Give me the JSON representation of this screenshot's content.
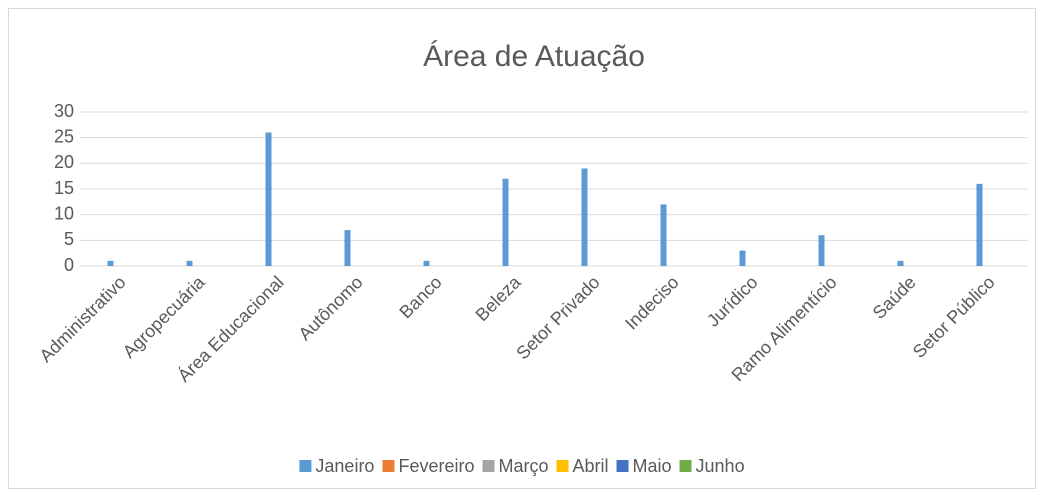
{
  "chart_data": {
    "type": "bar",
    "title": "Área de Atuação",
    "categories": [
      "Administrativo",
      "Agropecuária",
      "Área Educacional",
      "Autônomo",
      "Banco",
      "Beleza",
      "Setor Privado",
      "Indeciso",
      "Jurídico",
      "Ramo Alimentício",
      "Saúde",
      "Setor Público"
    ],
    "series": [
      {
        "name": "Janeiro",
        "color": "#5b9bd5",
        "values": [
          1,
          1,
          26,
          7,
          1,
          17,
          19,
          12,
          3,
          6,
          1,
          16
        ]
      },
      {
        "name": "Fevereiro",
        "color": "#ed7d31",
        "values": [
          null,
          null,
          null,
          null,
          null,
          null,
          null,
          null,
          null,
          null,
          null,
          null
        ]
      },
      {
        "name": "Março",
        "color": "#a5a5a5",
        "values": [
          null,
          null,
          null,
          null,
          null,
          null,
          null,
          null,
          null,
          null,
          null,
          null
        ]
      },
      {
        "name": "Abril",
        "color": "#ffc000",
        "values": [
          null,
          null,
          null,
          null,
          null,
          null,
          null,
          null,
          null,
          null,
          null,
          null
        ]
      },
      {
        "name": "Maio",
        "color": "#4472c4",
        "values": [
          null,
          null,
          null,
          null,
          null,
          null,
          null,
          null,
          null,
          null,
          null,
          null
        ]
      },
      {
        "name": "Junho",
        "color": "#70ad47",
        "values": [
          null,
          null,
          null,
          null,
          null,
          null,
          null,
          null,
          null,
          null,
          null,
          null
        ]
      }
    ],
    "ylim": [
      0,
      30
    ],
    "yticks": [
      0,
      5,
      10,
      15,
      20,
      25,
      30
    ],
    "grid": true,
    "legend": "bottom"
  }
}
